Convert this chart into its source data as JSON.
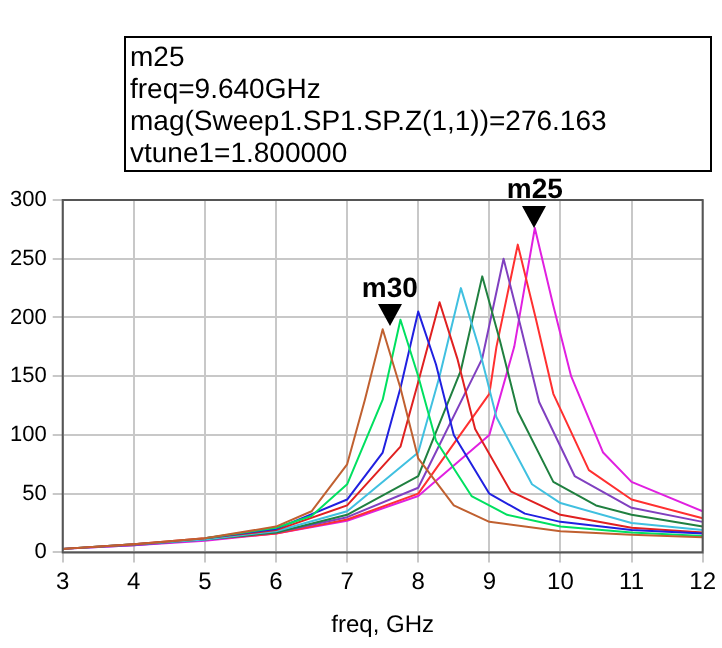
{
  "chart_data": {
    "type": "line",
    "xlabel": "freq, GHz",
    "xlim": [
      3,
      12
    ],
    "xticks": [
      3,
      4,
      5,
      6,
      7,
      8,
      9,
      10,
      11,
      12
    ],
    "ylim": [
      0,
      300
    ],
    "yticks": [
      0,
      50,
      100,
      150,
      200,
      250,
      300
    ],
    "grid": true,
    "legend": false,
    "marker": "none",
    "line_style": "solid",
    "annotations": [
      "m25",
      "freq=9.640GHz",
      "mag(Sweep1.SP1.SP.Z(1,1))=276.163",
      "vtune1=1.800000",
      {
        "text": "m25",
        "x": 9.64,
        "y": 276.163
      },
      {
        "text": "m30",
        "x": 7.6,
        "y": 192
      }
    ],
    "series": [
      {
        "color": "#c06030",
        "x": [
          3,
          4,
          5,
          6,
          6.5,
          7,
          7.25,
          7.5,
          7.75,
          8,
          8.5,
          9,
          10,
          11,
          12
        ],
        "values": [
          3,
          7,
          12,
          22,
          35,
          75,
          130,
          190,
          140,
          80,
          40,
          26,
          18,
          15,
          13
        ]
      },
      {
        "color": "#00e060",
        "x": [
          5,
          6,
          6.5,
          7,
          7.5,
          7.75,
          8,
          8.25,
          8.75,
          9.25,
          10,
          11,
          12
        ],
        "values": [
          12,
          21,
          31,
          58,
          130,
          198,
          150,
          95,
          48,
          32,
          22,
          17,
          14
        ]
      },
      {
        "color": "#2020e0",
        "x": [
          5,
          6,
          7,
          7.5,
          7.75,
          8,
          8.25,
          8.5,
          9,
          9.5,
          10,
          11,
          12
        ],
        "values": [
          12,
          20,
          45,
          85,
          140,
          205,
          160,
          100,
          50,
          33,
          26,
          19,
          16
        ]
      },
      {
        "color": "#e02020",
        "x": [
          3,
          4,
          5,
          6,
          7,
          7.75,
          8,
          8.3,
          8.55,
          8.8,
          9.3,
          10,
          11,
          12
        ],
        "values": [
          3,
          7,
          12,
          19,
          40,
          90,
          145,
          213,
          165,
          105,
          52,
          32,
          21,
          17
        ]
      },
      {
        "color": "#40c0e0",
        "x": [
          3,
          4,
          5,
          6,
          7,
          8,
          8.3,
          8.6,
          8.85,
          9.1,
          9.6,
          10,
          11,
          12
        ],
        "values": [
          3,
          7,
          11,
          18,
          35,
          85,
          150,
          225,
          175,
          115,
          58,
          42,
          25,
          19
        ]
      },
      {
        "color": "#208040",
        "x": [
          3,
          4,
          5,
          6,
          7,
          8,
          8.6,
          8.9,
          9.15,
          9.4,
          9.9,
          10.5,
          11,
          12
        ],
        "values": [
          3,
          7,
          11,
          17,
          32,
          65,
          155,
          235,
          180,
          120,
          60,
          40,
          32,
          22
        ]
      },
      {
        "color": "#8040c0",
        "x": [
          3,
          4,
          5,
          6,
          7,
          8,
          8.9,
          9.2,
          9.45,
          9.7,
          10.2,
          11,
          12
        ],
        "values": [
          3,
          6,
          11,
          17,
          30,
          55,
          165,
          250,
          190,
          128,
          65,
          38,
          26
        ]
      },
      {
        "color": "#ff3030",
        "x": [
          5,
          6,
          7,
          8,
          9,
          9.1,
          9.4,
          9.65,
          9.9,
          10.4,
          11,
          12
        ],
        "values": [
          11,
          16,
          28,
          50,
          135,
          175,
          262,
          200,
          135,
          70,
          45,
          29
        ]
      },
      {
        "color": "#e020e0",
        "x": [
          3,
          4,
          5,
          6,
          7,
          8,
          9,
          9.35,
          9.64,
          9.9,
          10.15,
          10.6,
          11,
          12
        ],
        "values": [
          3,
          6,
          10,
          16,
          27,
          48,
          100,
          175,
          276.163,
          210,
          150,
          85,
          60,
          35
        ]
      }
    ]
  }
}
